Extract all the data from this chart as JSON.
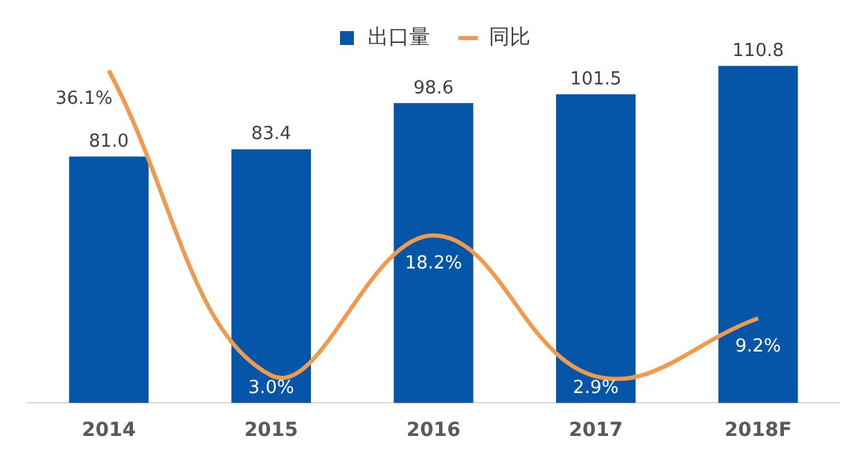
{
  "chart_data": {
    "type": "bar",
    "categories": [
      "2014",
      "2015",
      "2016",
      "2017",
      "2018F"
    ],
    "series": [
      {
        "name": "出口量",
        "color": "#0556a8",
        "values": [
          81.0,
          83.4,
          98.6,
          101.5,
          110.8
        ],
        "value_labels": [
          "81.0",
          "83.4",
          "98.6",
          "101.5",
          "110.8"
        ]
      },
      {
        "name": "同比",
        "type": "line",
        "axis": "y2",
        "color": "#f09a4e",
        "values": [
          36.1,
          3.0,
          18.2,
          2.9,
          9.2
        ],
        "value_labels": [
          "36.1%",
          "3.0%",
          "18.2%",
          "2.9%",
          "9.2%"
        ]
      }
    ],
    "ylim": [
      0,
      112
    ],
    "y2lim": [
      0,
      37
    ],
    "tick_labels": "x",
    "grid": false,
    "legend": "top",
    "marker": "none",
    "line_style": "solid"
  }
}
